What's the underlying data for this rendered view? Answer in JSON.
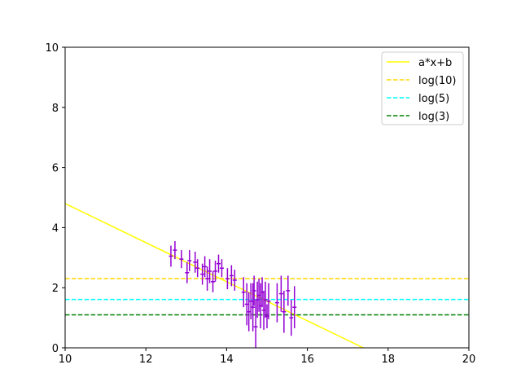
{
  "chart_data": {
    "type": "scatter",
    "title": "",
    "xlabel": "",
    "ylabel": "",
    "xlim": [
      10,
      20
    ],
    "ylim": [
      0,
      10
    ],
    "xticks": [
      10,
      12,
      14,
      16,
      18,
      20
    ],
    "yticks": [
      0,
      2,
      4,
      6,
      8,
      10
    ],
    "grid": false,
    "legend_position": "top-right",
    "fit_line": {
      "name": "a*x+b",
      "color": "#ffff00",
      "a": -0.65,
      "b": 11.3
    },
    "hlines": [
      {
        "name": "log(10)",
        "y": 2.303,
        "color": "#ffd700",
        "style": "dashed"
      },
      {
        "name": "log(5)",
        "y": 1.609,
        "color": "#00ffff",
        "style": "dashed"
      },
      {
        "name": "log(3)",
        "y": 1.099,
        "color": "#008000",
        "style": "dashed"
      }
    ],
    "errorbar_series": {
      "color": "#9400d3",
      "points": [
        {
          "x": 12.62,
          "y": 3.05,
          "xerr": 0.05,
          "yerr": 0.35
        },
        {
          "x": 12.72,
          "y": 3.25,
          "xerr": 0.05,
          "yerr": 0.3
        },
        {
          "x": 12.88,
          "y": 2.95,
          "xerr": 0.05,
          "yerr": 0.3
        },
        {
          "x": 13.02,
          "y": 2.5,
          "xerr": 0.05,
          "yerr": 0.35
        },
        {
          "x": 13.08,
          "y": 2.9,
          "xerr": 0.05,
          "yerr": 0.35
        },
        {
          "x": 13.22,
          "y": 2.85,
          "xerr": 0.05,
          "yerr": 0.35
        },
        {
          "x": 13.28,
          "y": 2.65,
          "xerr": 0.05,
          "yerr": 0.3
        },
        {
          "x": 13.4,
          "y": 2.45,
          "xerr": 0.05,
          "yerr": 0.35
        },
        {
          "x": 13.46,
          "y": 2.7,
          "xerr": 0.05,
          "yerr": 0.35
        },
        {
          "x": 13.52,
          "y": 2.3,
          "xerr": 0.05,
          "yerr": 0.4
        },
        {
          "x": 13.58,
          "y": 2.55,
          "xerr": 0.05,
          "yerr": 0.4
        },
        {
          "x": 13.66,
          "y": 2.2,
          "xerr": 0.05,
          "yerr": 0.35
        },
        {
          "x": 13.72,
          "y": 2.55,
          "xerr": 0.05,
          "yerr": 0.35
        },
        {
          "x": 13.8,
          "y": 2.8,
          "xerr": 0.05,
          "yerr": 0.3
        },
        {
          "x": 13.88,
          "y": 2.65,
          "xerr": 0.05,
          "yerr": 0.3
        },
        {
          "x": 14.02,
          "y": 2.3,
          "xerr": 0.05,
          "yerr": 0.35
        },
        {
          "x": 14.12,
          "y": 2.4,
          "xerr": 0.05,
          "yerr": 0.35
        },
        {
          "x": 14.2,
          "y": 2.25,
          "xerr": 0.05,
          "yerr": 0.35
        },
        {
          "x": 14.42,
          "y": 1.85,
          "xerr": 0.05,
          "yerr": 0.5
        },
        {
          "x": 14.5,
          "y": 1.45,
          "xerr": 0.05,
          "yerr": 0.7
        },
        {
          "x": 14.55,
          "y": 1.2,
          "xerr": 0.05,
          "yerr": 0.65
        },
        {
          "x": 14.6,
          "y": 1.55,
          "xerr": 0.05,
          "yerr": 0.6
        },
        {
          "x": 14.65,
          "y": 1.35,
          "xerr": 0.05,
          "yerr": 0.8
        },
        {
          "x": 14.68,
          "y": 1.9,
          "xerr": 0.05,
          "yerr": 0.5
        },
        {
          "x": 14.72,
          "y": 0.7,
          "xerr": 0.05,
          "yerr": 0.9
        },
        {
          "x": 14.76,
          "y": 1.6,
          "xerr": 0.05,
          "yerr": 0.6
        },
        {
          "x": 14.8,
          "y": 1.75,
          "xerr": 0.05,
          "yerr": 0.55
        },
        {
          "x": 14.84,
          "y": 1.4,
          "xerr": 0.05,
          "yerr": 0.75
        },
        {
          "x": 14.88,
          "y": 1.85,
          "xerr": 0.05,
          "yerr": 0.5
        },
        {
          "x": 14.92,
          "y": 1.25,
          "xerr": 0.05,
          "yerr": 0.65
        },
        {
          "x": 14.96,
          "y": 1.6,
          "xerr": 0.05,
          "yerr": 0.6
        },
        {
          "x": 15.0,
          "y": 1.05,
          "xerr": 0.05,
          "yerr": 0.4
        },
        {
          "x": 15.04,
          "y": 1.55,
          "xerr": 0.05,
          "yerr": 0.6
        },
        {
          "x": 15.25,
          "y": 1.5,
          "xerr": 0.05,
          "yerr": 0.65
        },
        {
          "x": 15.35,
          "y": 1.8,
          "xerr": 0.05,
          "yerr": 0.6
        },
        {
          "x": 15.42,
          "y": 1.2,
          "xerr": 0.05,
          "yerr": 0.7
        },
        {
          "x": 15.52,
          "y": 1.9,
          "xerr": 0.05,
          "yerr": 0.5
        },
        {
          "x": 15.6,
          "y": 1.0,
          "xerr": 0.05,
          "yerr": 0.6
        },
        {
          "x": 15.68,
          "y": 1.35,
          "xerr": 0.05,
          "yerr": 0.7
        }
      ]
    }
  }
}
